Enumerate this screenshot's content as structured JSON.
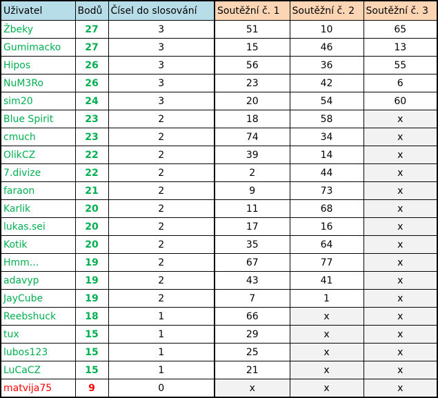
{
  "headers": [
    "Uživatel",
    "Bodů",
    "Čísel do slosování",
    "Soutěžní č. 1",
    "Soutěžní č. 2",
    "Soutěžní č. 3"
  ],
  "colors": {
    "header_blue": "#b7dee8",
    "header_orange": "#fcd5b4",
    "user_green": "#00b050",
    "user_red": "#ff0000",
    "empty_cell": "#f2f2f2"
  },
  "rows": [
    {
      "user": "Žbeky",
      "points": "27",
      "draws": "3",
      "s1": "51",
      "s2": "10",
      "s3": "65"
    },
    {
      "user": "Gumimacko",
      "points": "27",
      "draws": "3",
      "s1": "15",
      "s2": "46",
      "s3": "13"
    },
    {
      "user": "Hipos",
      "points": "26",
      "draws": "3",
      "s1": "56",
      "s2": "36",
      "s3": "55"
    },
    {
      "user": "NuM3Ro",
      "points": "26",
      "draws": "3",
      "s1": "23",
      "s2": "42",
      "s3": "6"
    },
    {
      "user": "sim20",
      "points": "24",
      "draws": "3",
      "s1": "20",
      "s2": "54",
      "s3": "60"
    },
    {
      "user": "Blue Spirit",
      "points": "23",
      "draws": "2",
      "s1": "18",
      "s2": "58",
      "s3": "x"
    },
    {
      "user": "cmuch",
      "points": "23",
      "draws": "2",
      "s1": "74",
      "s2": "34",
      "s3": "x"
    },
    {
      "user": "OlikCZ",
      "points": "22",
      "draws": "2",
      "s1": "39",
      "s2": "14",
      "s3": "x"
    },
    {
      "user": "7.divize",
      "points": "22",
      "draws": "2",
      "s1": "2",
      "s2": "44",
      "s3": "x"
    },
    {
      "user": "faraon",
      "points": "21",
      "draws": "2",
      "s1": "9",
      "s2": "73",
      "s3": "x"
    },
    {
      "user": "Karlik",
      "points": "20",
      "draws": "2",
      "s1": "11",
      "s2": "68",
      "s3": "x"
    },
    {
      "user": "lukas.sei",
      "points": "20",
      "draws": "2",
      "s1": "17",
      "s2": "16",
      "s3": "x"
    },
    {
      "user": "Kotik",
      "points": "20",
      "draws": "2",
      "s1": "35",
      "s2": "64",
      "s3": "x"
    },
    {
      "user": "Hmm...",
      "points": "19",
      "draws": "2",
      "s1": "67",
      "s2": "77",
      "s3": "x"
    },
    {
      "user": "adavyp",
      "points": "19",
      "draws": "2",
      "s1": "43",
      "s2": "41",
      "s3": "x"
    },
    {
      "user": "JayCube",
      "points": "19",
      "draws": "2",
      "s1": "7",
      "s2": "1",
      "s3": "x"
    },
    {
      "user": "Reebshuck",
      "points": "18",
      "draws": "1",
      "s1": "66",
      "s2": "x",
      "s3": "x"
    },
    {
      "user": "tux",
      "points": "15",
      "draws": "1",
      "s1": "29",
      "s2": "x",
      "s3": "x"
    },
    {
      "user": "lubos123",
      "points": "15",
      "draws": "1",
      "s1": "25",
      "s2": "x",
      "s3": "x"
    },
    {
      "user": "LuCaCZ",
      "points": "15",
      "draws": "1",
      "s1": "21",
      "s2": "x",
      "s3": "x"
    },
    {
      "user": "matvija75",
      "points": "9",
      "draws": "0",
      "s1": "x",
      "s2": "x",
      "s3": "x",
      "red": true
    }
  ]
}
